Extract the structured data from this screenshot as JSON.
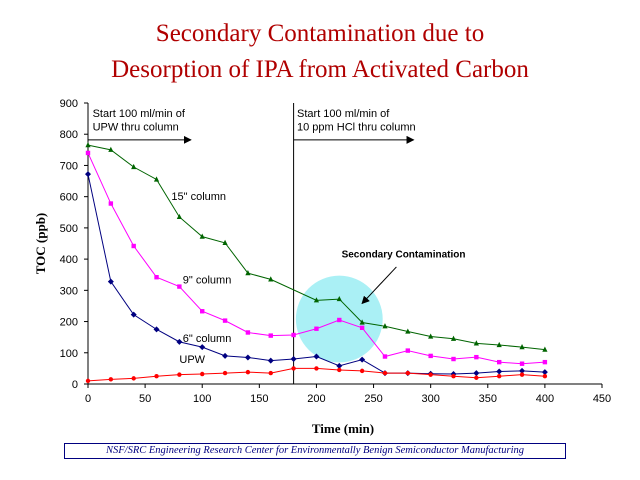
{
  "chart_data": {
    "type": "line",
    "title_lines": [
      "Secondary Contamination due to",
      "Desorption of IPA from Activated Carbon"
    ],
    "xlabel": "Time (min)",
    "ylabel": "TOC (ppb)",
    "xlim": [
      0,
      450
    ],
    "ylim": [
      0,
      900
    ],
    "xticks": [
      0,
      50,
      100,
      150,
      200,
      250,
      300,
      350,
      400,
      450
    ],
    "yticks": [
      0,
      100,
      200,
      300,
      400,
      500,
      600,
      700,
      800,
      900
    ],
    "grid": false,
    "series": [
      {
        "name": "15\" column",
        "color": "#006400",
        "marker": "triangle",
        "points": [
          [
            0,
            765
          ],
          [
            20,
            750
          ],
          [
            40,
            695
          ],
          [
            60,
            655
          ],
          [
            80,
            535
          ],
          [
            100,
            472
          ],
          [
            120,
            452
          ],
          [
            140,
            355
          ],
          [
            160,
            335
          ],
          [
            200,
            268
          ],
          [
            220,
            272
          ],
          [
            240,
            197
          ],
          [
            260,
            185
          ],
          [
            280,
            168
          ],
          [
            300,
            152
          ],
          [
            320,
            145
          ],
          [
            340,
            130
          ],
          [
            360,
            125
          ],
          [
            380,
            118
          ],
          [
            400,
            110
          ]
        ]
      },
      {
        "name": "9\" column",
        "color": "#ff00ff",
        "marker": "square",
        "points": [
          [
            0,
            740
          ],
          [
            20,
            578
          ],
          [
            40,
            442
          ],
          [
            60,
            342
          ],
          [
            80,
            312
          ],
          [
            100,
            233
          ],
          [
            120,
            203
          ],
          [
            140,
            165
          ],
          [
            160,
            155
          ],
          [
            180,
            157
          ],
          [
            200,
            177
          ],
          [
            220,
            205
          ],
          [
            240,
            180
          ],
          [
            260,
            88
          ],
          [
            280,
            107
          ],
          [
            300,
            90
          ],
          [
            320,
            80
          ],
          [
            340,
            86
          ],
          [
            360,
            70
          ],
          [
            380,
            65
          ],
          [
            400,
            70
          ]
        ]
      },
      {
        "name": "6\" column",
        "color": "#000080",
        "marker": "diamond",
        "points": [
          [
            0,
            672
          ],
          [
            20,
            328
          ],
          [
            40,
            222
          ],
          [
            60,
            175
          ],
          [
            80,
            135
          ],
          [
            100,
            118
          ],
          [
            120,
            90
          ],
          [
            140,
            85
          ],
          [
            160,
            75
          ],
          [
            180,
            80
          ],
          [
            200,
            88
          ],
          [
            220,
            58
          ],
          [
            240,
            78
          ],
          [
            260,
            35
          ],
          [
            280,
            35
          ],
          [
            300,
            33
          ],
          [
            320,
            32
          ],
          [
            340,
            35
          ],
          [
            360,
            40
          ],
          [
            380,
            42
          ],
          [
            400,
            38
          ]
        ]
      },
      {
        "name": "UPW",
        "color": "#ff0000",
        "marker": "circle",
        "points": [
          [
            0,
            10
          ],
          [
            20,
            15
          ],
          [
            40,
            18
          ],
          [
            60,
            25
          ],
          [
            80,
            30
          ],
          [
            100,
            32
          ],
          [
            120,
            35
          ],
          [
            140,
            38
          ],
          [
            160,
            35
          ],
          [
            180,
            50
          ],
          [
            200,
            50
          ],
          [
            220,
            45
          ],
          [
            240,
            42
          ],
          [
            260,
            35
          ],
          [
            280,
            35
          ],
          [
            300,
            30
          ],
          [
            320,
            25
          ],
          [
            340,
            20
          ],
          [
            360,
            25
          ],
          [
            380,
            30
          ],
          [
            400,
            25
          ]
        ]
      }
    ],
    "divider_x": 180,
    "highlight": {
      "cx": 220,
      "cy": 208,
      "r": 38,
      "color": "#aaf0f5"
    },
    "annotations": [
      {
        "text": "Start 100 ml/min of",
        "x": 4,
        "y": 855
      },
      {
        "text": "UPW thru column",
        "x": 4,
        "y": 812
      },
      {
        "text": "Start 100 ml/min of",
        "x": 183,
        "y": 855
      },
      {
        "text": "10 ppm HCl thru column",
        "x": 183,
        "y": 812
      }
    ],
    "arrows": [
      {
        "x1": 0,
        "x2": 90,
        "y": 782
      },
      {
        "x1": 180,
        "x2": 285,
        "y": 782
      }
    ],
    "series_labels": [
      {
        "text": "15\" column",
        "x": 73,
        "y": 590
      },
      {
        "text": "9\" column",
        "x": 83,
        "y": 322
      },
      {
        "text": "6\" column",
        "x": 83,
        "y": 135
      },
      {
        "text": "UPW",
        "x": 80,
        "y": 68
      }
    ],
    "callout": {
      "text": "Secondary Contamination",
      "text_x": 222,
      "text_y": 405,
      "from_x": 270,
      "from_y": 375,
      "to_x": 240,
      "to_y": 258
    }
  },
  "footer": "NSF/SRC Engineering Research Center for Environmentally Benign Semiconductor Manufacturing"
}
